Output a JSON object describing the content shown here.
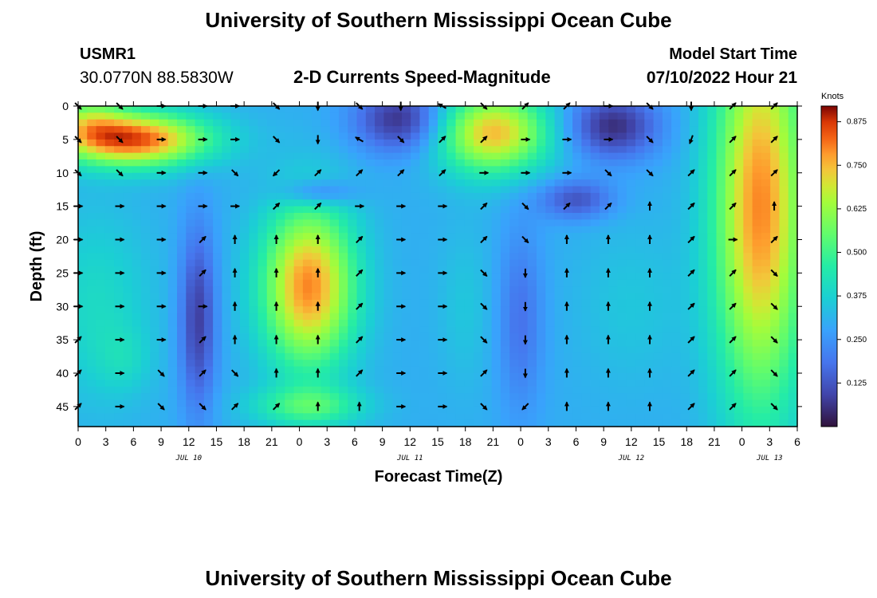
{
  "header": {
    "title": "University of Southern Mississippi Ocean Cube",
    "station_id": "USMR1",
    "station_coords": "30.0770N  88.5830W",
    "plot_title": "2-D Currents Speed-Magnitude",
    "run_label": "Model Start Time",
    "run_time": "07/10/2022 Hour 21"
  },
  "footer": {
    "title": "University of Southern Mississippi Ocean Cube"
  },
  "chart_data": {
    "type": "heatmap",
    "xlabel": "Forecast Time(Z)",
    "ylabel": "Depth (ft)",
    "colorbar_label": "Knots",
    "colorbar_ticks": [
      "0.875",
      "0.750",
      "0.625",
      "0.500",
      "0.375",
      "0.250",
      "0.125"
    ],
    "colorbar_range": [
      0,
      0.92
    ],
    "x_tick_labels": [
      "0",
      "3",
      "6",
      "9",
      "12",
      "15",
      "18",
      "21",
      "0",
      "3",
      "6",
      "9",
      "12",
      "15",
      "18",
      "21",
      "0",
      "3",
      "6",
      "9",
      "12",
      "15",
      "18",
      "21",
      "0",
      "3",
      "6"
    ],
    "x_range_hours": [
      0,
      78
    ],
    "date_labels": [
      {
        "text": "JUL 10",
        "hour": 12
      },
      {
        "text": "JUL 11",
        "hour": 36
      },
      {
        "text": "JUL 12",
        "hour": 60
      },
      {
        "text": "JUL 13",
        "hour": 75
      }
    ],
    "y_tick_labels": [
      "0",
      "5",
      "10",
      "15",
      "20",
      "25",
      "30",
      "35",
      "40",
      "45"
    ],
    "y_range_ft": [
      0,
      48
    ],
    "speed_blobs": [
      {
        "hour": 6,
        "depth": 5,
        "sx": 8,
        "sy": 4,
        "value": 0.55
      },
      {
        "hour": 1,
        "depth": 2,
        "sx": 4,
        "sy": 4,
        "value": 0.2
      },
      {
        "hour": 2,
        "depth": 30,
        "sx": 6,
        "sy": 14,
        "value": 0.1
      },
      {
        "hour": 13,
        "depth": 32,
        "sx": 2,
        "sy": 14,
        "value": -0.22
      },
      {
        "hour": 25,
        "depth": 27,
        "sx": 5,
        "sy": 12,
        "value": 0.5
      },
      {
        "hour": 25,
        "depth": 45,
        "sx": 6,
        "sy": 3,
        "value": 0.2
      },
      {
        "hour": 35,
        "depth": 2,
        "sx": 5,
        "sy": 5,
        "value": -0.25
      },
      {
        "hour": 26,
        "depth": 13,
        "sx": 4,
        "sy": 2,
        "value": -0.15
      },
      {
        "hour": 45,
        "depth": 4,
        "sx": 6,
        "sy": 6,
        "value": 0.45
      },
      {
        "hour": 58,
        "depth": 3,
        "sx": 5,
        "sy": 5,
        "value": -0.25
      },
      {
        "hour": 54,
        "depth": 14,
        "sx": 4,
        "sy": 3,
        "value": -0.18
      },
      {
        "hour": 74,
        "depth": 15,
        "sx": 5,
        "sy": 30,
        "value": 0.5
      },
      {
        "hour": 60,
        "depth": 30,
        "sx": 6,
        "sy": 12,
        "value": 0.05
      },
      {
        "hour": 48,
        "depth": 32,
        "sx": 2.5,
        "sy": 14,
        "value": -0.12
      },
      {
        "hour": 42,
        "depth": 30,
        "sx": 3,
        "sy": 12,
        "value": 0.05
      },
      {
        "hour": 5,
        "depth": 38,
        "sx": 3,
        "sy": 5,
        "value": 0.06
      }
    ],
    "speed_base": 0.3,
    "vectors": {
      "rows_ft": [
        0,
        5,
        10,
        15,
        20,
        25,
        30,
        35,
        40,
        45
      ],
      "cols_hour": [
        0,
        4.5,
        9,
        13.5,
        17,
        21.5,
        26,
        30.5,
        35,
        39.5,
        44,
        48.5,
        53,
        57.5,
        62,
        66.5,
        71,
        75.5
      ],
      "directions_deg": [
        [
          135,
          135,
          90,
          90,
          90,
          135,
          180,
          135,
          180,
          300,
          135,
          45,
          45,
          90,
          135,
          180,
          45,
          45
        ],
        [
          135,
          135,
          90,
          90,
          90,
          135,
          180,
          300,
          135,
          45,
          45,
          90,
          90,
          90,
          135,
          200,
          45,
          45
        ],
        [
          135,
          135,
          90,
          90,
          135,
          225,
          45,
          45,
          45,
          45,
          90,
          90,
          90,
          135,
          135,
          45,
          45,
          45
        ],
        [
          90,
          90,
          90,
          90,
          90,
          45,
          45,
          90,
          90,
          90,
          45,
          135,
          45,
          45,
          0,
          45,
          45,
          0
        ],
        [
          90,
          90,
          90,
          45,
          0,
          0,
          0,
          45,
          90,
          90,
          45,
          135,
          0,
          0,
          0,
          45,
          90,
          45
        ],
        [
          90,
          90,
          90,
          45,
          0,
          0,
          0,
          45,
          90,
          90,
          135,
          180,
          0,
          0,
          0,
          45,
          45,
          135
        ],
        [
          90,
          90,
          90,
          90,
          0,
          0,
          0,
          45,
          90,
          90,
          135,
          180,
          0,
          0,
          0,
          45,
          45,
          135
        ],
        [
          45,
          90,
          90,
          45,
          0,
          0,
          0,
          45,
          90,
          90,
          135,
          180,
          0,
          0,
          0,
          45,
          45,
          135
        ],
        [
          45,
          90,
          135,
          45,
          135,
          0,
          0,
          45,
          90,
          90,
          45,
          180,
          0,
          0,
          0,
          45,
          45,
          135
        ],
        [
          45,
          90,
          135,
          135,
          45,
          45,
          0,
          0,
          90,
          90,
          135,
          225,
          0,
          0,
          0,
          45,
          45,
          135
        ]
      ]
    }
  }
}
